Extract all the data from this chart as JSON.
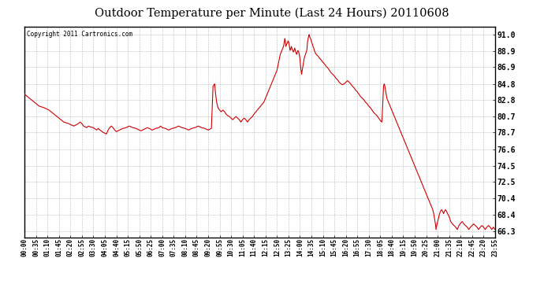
{
  "title": "Outdoor Temperature per Minute (Last 24 Hours) 20110608",
  "copyright": "Copyright 2011 Cartronics.com",
  "line_color": "#cc0000",
  "bg_color": "#ffffff",
  "plot_bg_color": "#ffffff",
  "grid_color": "#aaaaaa",
  "yticks": [
    66.3,
    68.4,
    70.4,
    72.5,
    74.5,
    76.6,
    78.7,
    80.7,
    82.8,
    84.8,
    86.9,
    88.9,
    91.0
  ],
  "ylim": [
    65.5,
    92.0
  ],
  "xlim_start": 0,
  "xlim_end": 1435,
  "temperature_profile": [
    [
      0,
      83.5
    ],
    [
      15,
      83.0
    ],
    [
      30,
      82.5
    ],
    [
      45,
      82.0
    ],
    [
      60,
      81.8
    ],
    [
      75,
      81.5
    ],
    [
      90,
      81.0
    ],
    [
      105,
      80.5
    ],
    [
      120,
      80.0
    ],
    [
      135,
      79.8
    ],
    [
      150,
      79.5
    ],
    [
      160,
      79.7
    ],
    [
      170,
      80.0
    ],
    [
      175,
      79.8
    ],
    [
      180,
      79.5
    ],
    [
      190,
      79.3
    ],
    [
      195,
      79.5
    ],
    [
      200,
      79.4
    ],
    [
      210,
      79.3
    ],
    [
      220,
      79.0
    ],
    [
      225,
      79.2
    ],
    [
      230,
      79.0
    ],
    [
      240,
      78.7
    ],
    [
      250,
      78.5
    ],
    [
      255,
      79.0
    ],
    [
      260,
      79.3
    ],
    [
      265,
      79.5
    ],
    [
      270,
      79.3
    ],
    [
      275,
      79.0
    ],
    [
      280,
      78.8
    ],
    [
      290,
      79.0
    ],
    [
      300,
      79.2
    ],
    [
      310,
      79.3
    ],
    [
      320,
      79.5
    ],
    [
      330,
      79.3
    ],
    [
      340,
      79.2
    ],
    [
      350,
      79.0
    ],
    [
      355,
      78.9
    ],
    [
      360,
      79.0
    ],
    [
      370,
      79.2
    ],
    [
      375,
      79.3
    ],
    [
      380,
      79.2
    ],
    [
      390,
      79.0
    ],
    [
      400,
      79.2
    ],
    [
      410,
      79.3
    ],
    [
      415,
      79.5
    ],
    [
      420,
      79.3
    ],
    [
      430,
      79.2
    ],
    [
      440,
      79.0
    ],
    [
      450,
      79.2
    ],
    [
      460,
      79.3
    ],
    [
      470,
      79.5
    ],
    [
      480,
      79.3
    ],
    [
      490,
      79.2
    ],
    [
      500,
      79.0
    ],
    [
      510,
      79.2
    ],
    [
      520,
      79.3
    ],
    [
      530,
      79.5
    ],
    [
      540,
      79.3
    ],
    [
      550,
      79.2
    ],
    [
      560,
      79.0
    ],
    [
      570,
      79.2
    ],
    [
      575,
      84.5
    ],
    [
      580,
      84.8
    ],
    [
      583,
      83.5
    ],
    [
      586,
      82.5
    ],
    [
      590,
      81.8
    ],
    [
      595,
      81.5
    ],
    [
      600,
      81.3
    ],
    [
      605,
      81.5
    ],
    [
      610,
      81.3
    ],
    [
      615,
      81.0
    ],
    [
      620,
      80.8
    ],
    [
      625,
      80.7
    ],
    [
      630,
      80.5
    ],
    [
      635,
      80.3
    ],
    [
      640,
      80.5
    ],
    [
      645,
      80.7
    ],
    [
      650,
      80.5
    ],
    [
      655,
      80.3
    ],
    [
      660,
      80.0
    ],
    [
      665,
      80.3
    ],
    [
      670,
      80.5
    ],
    [
      675,
      80.3
    ],
    [
      680,
      80.0
    ],
    [
      685,
      80.3
    ],
    [
      690,
      80.5
    ],
    [
      695,
      80.7
    ],
    [
      700,
      81.0
    ],
    [
      710,
      81.5
    ],
    [
      720,
      82.0
    ],
    [
      730,
      82.5
    ],
    [
      740,
      83.5
    ],
    [
      750,
      84.5
    ],
    [
      760,
      85.5
    ],
    [
      770,
      86.5
    ],
    [
      775,
      87.5
    ],
    [
      780,
      88.5
    ],
    [
      785,
      89.0
    ],
    [
      787,
      89.2
    ],
    [
      790,
      89.5
    ],
    [
      792,
      90.0
    ],
    [
      793,
      90.3
    ],
    [
      794,
      90.5
    ],
    [
      795,
      90.3
    ],
    [
      796,
      90.0
    ],
    [
      797,
      89.5
    ],
    [
      800,
      89.8
    ],
    [
      802,
      90.0
    ],
    [
      804,
      90.2
    ],
    [
      806,
      90.0
    ],
    [
      808,
      89.5
    ],
    [
      810,
      89.0
    ],
    [
      812,
      89.2
    ],
    [
      814,
      89.5
    ],
    [
      816,
      89.2
    ],
    [
      818,
      89.0
    ],
    [
      820,
      88.8
    ],
    [
      822,
      89.0
    ],
    [
      824,
      89.3
    ],
    [
      826,
      89.0
    ],
    [
      828,
      88.7
    ],
    [
      830,
      88.5
    ],
    [
      832,
      88.8
    ],
    [
      834,
      89.0
    ],
    [
      836,
      88.8
    ],
    [
      838,
      88.5
    ],
    [
      840,
      88.0
    ],
    [
      842,
      87.0
    ],
    [
      844,
      86.3
    ],
    [
      845,
      86.0
    ],
    [
      847,
      86.5
    ],
    [
      849,
      87.0
    ],
    [
      851,
      87.5
    ],
    [
      853,
      88.0
    ],
    [
      855,
      88.3
    ],
    [
      857,
      88.5
    ],
    [
      859,
      88.8
    ],
    [
      861,
      89.0
    ],
    [
      863,
      90.0
    ],
    [
      865,
      90.5
    ],
    [
      867,
      90.8
    ],
    [
      868,
      91.0
    ],
    [
      870,
      90.7
    ],
    [
      872,
      90.5
    ],
    [
      874,
      90.3
    ],
    [
      876,
      90.0
    ],
    [
      878,
      89.8
    ],
    [
      880,
      89.5
    ],
    [
      882,
      89.3
    ],
    [
      884,
      89.0
    ],
    [
      886,
      88.8
    ],
    [
      888,
      88.6
    ],
    [
      890,
      88.5
    ],
    [
      895,
      88.3
    ],
    [
      900,
      88.0
    ],
    [
      905,
      87.8
    ],
    [
      910,
      87.5
    ],
    [
      915,
      87.3
    ],
    [
      920,
      87.0
    ],
    [
      925,
      86.8
    ],
    [
      930,
      86.5
    ],
    [
      935,
      86.2
    ],
    [
      940,
      86.0
    ],
    [
      945,
      85.8
    ],
    [
      950,
      85.5
    ],
    [
      955,
      85.3
    ],
    [
      960,
      85.0
    ],
    [
      965,
      84.8
    ],
    [
      970,
      84.7
    ],
    [
      975,
      84.8
    ],
    [
      980,
      85.0
    ],
    [
      985,
      85.2
    ],
    [
      990,
      85.0
    ],
    [
      995,
      84.8
    ],
    [
      1000,
      84.5
    ],
    [
      1005,
      84.3
    ],
    [
      1010,
      84.0
    ],
    [
      1015,
      83.8
    ],
    [
      1020,
      83.5
    ],
    [
      1025,
      83.2
    ],
    [
      1030,
      83.0
    ],
    [
      1035,
      82.8
    ],
    [
      1040,
      82.5
    ],
    [
      1045,
      82.3
    ],
    [
      1050,
      82.0
    ],
    [
      1055,
      81.8
    ],
    [
      1060,
      81.5
    ],
    [
      1065,
      81.2
    ],
    [
      1070,
      81.0
    ],
    [
      1075,
      80.8
    ],
    [
      1080,
      80.5
    ],
    [
      1085,
      80.2
    ],
    [
      1090,
      80.0
    ],
    [
      1095,
      84.5
    ],
    [
      1097,
      84.8
    ],
    [
      1099,
      84.5
    ],
    [
      1101,
      84.0
    ],
    [
      1103,
      83.5
    ],
    [
      1105,
      83.0
    ],
    [
      1110,
      82.5
    ],
    [
      1115,
      82.0
    ],
    [
      1120,
      81.5
    ],
    [
      1125,
      81.0
    ],
    [
      1130,
      80.5
    ],
    [
      1135,
      80.0
    ],
    [
      1140,
      79.5
    ],
    [
      1145,
      79.0
    ],
    [
      1150,
      78.5
    ],
    [
      1155,
      78.0
    ],
    [
      1160,
      77.5
    ],
    [
      1165,
      77.0
    ],
    [
      1170,
      76.5
    ],
    [
      1175,
      76.0
    ],
    [
      1180,
      75.5
    ],
    [
      1185,
      75.0
    ],
    [
      1190,
      74.5
    ],
    [
      1195,
      74.0
    ],
    [
      1200,
      73.5
    ],
    [
      1205,
      73.0
    ],
    [
      1210,
      72.5
    ],
    [
      1215,
      72.0
    ],
    [
      1220,
      71.5
    ],
    [
      1225,
      71.0
    ],
    [
      1230,
      70.5
    ],
    [
      1235,
      70.0
    ],
    [
      1240,
      69.5
    ],
    [
      1245,
      69.0
    ],
    [
      1248,
      68.5
    ],
    [
      1250,
      68.0
    ],
    [
      1252,
      67.5
    ],
    [
      1253,
      67.2
    ],
    [
      1254,
      67.0
    ],
    [
      1255,
      66.5
    ],
    [
      1257,
      67.0
    ],
    [
      1260,
      67.5
    ],
    [
      1263,
      68.0
    ],
    [
      1266,
      68.5
    ],
    [
      1269,
      68.8
    ],
    [
      1272,
      69.0
    ],
    [
      1275,
      68.8
    ],
    [
      1278,
      68.5
    ],
    [
      1281,
      68.8
    ],
    [
      1284,
      69.0
    ],
    [
      1287,
      68.8
    ],
    [
      1290,
      68.5
    ],
    [
      1293,
      68.3
    ],
    [
      1296,
      68.0
    ],
    [
      1300,
      67.5
    ],
    [
      1305,
      67.2
    ],
    [
      1310,
      67.0
    ],
    [
      1315,
      66.8
    ],
    [
      1320,
      66.5
    ],
    [
      1325,
      67.0
    ],
    [
      1330,
      67.3
    ],
    [
      1335,
      67.5
    ],
    [
      1340,
      67.2
    ],
    [
      1345,
      67.0
    ],
    [
      1350,
      66.8
    ],
    [
      1355,
      66.5
    ],
    [
      1360,
      66.8
    ],
    [
      1365,
      67.0
    ],
    [
      1370,
      67.2
    ],
    [
      1375,
      67.0
    ],
    [
      1380,
      66.8
    ],
    [
      1385,
      66.5
    ],
    [
      1390,
      66.8
    ],
    [
      1395,
      67.0
    ],
    [
      1400,
      66.8
    ],
    [
      1405,
      66.5
    ],
    [
      1410,
      66.8
    ],
    [
      1415,
      67.0
    ],
    [
      1420,
      66.8
    ],
    [
      1425,
      66.5
    ],
    [
      1430,
      66.8
    ],
    [
      1435,
      66.5
    ]
  ]
}
